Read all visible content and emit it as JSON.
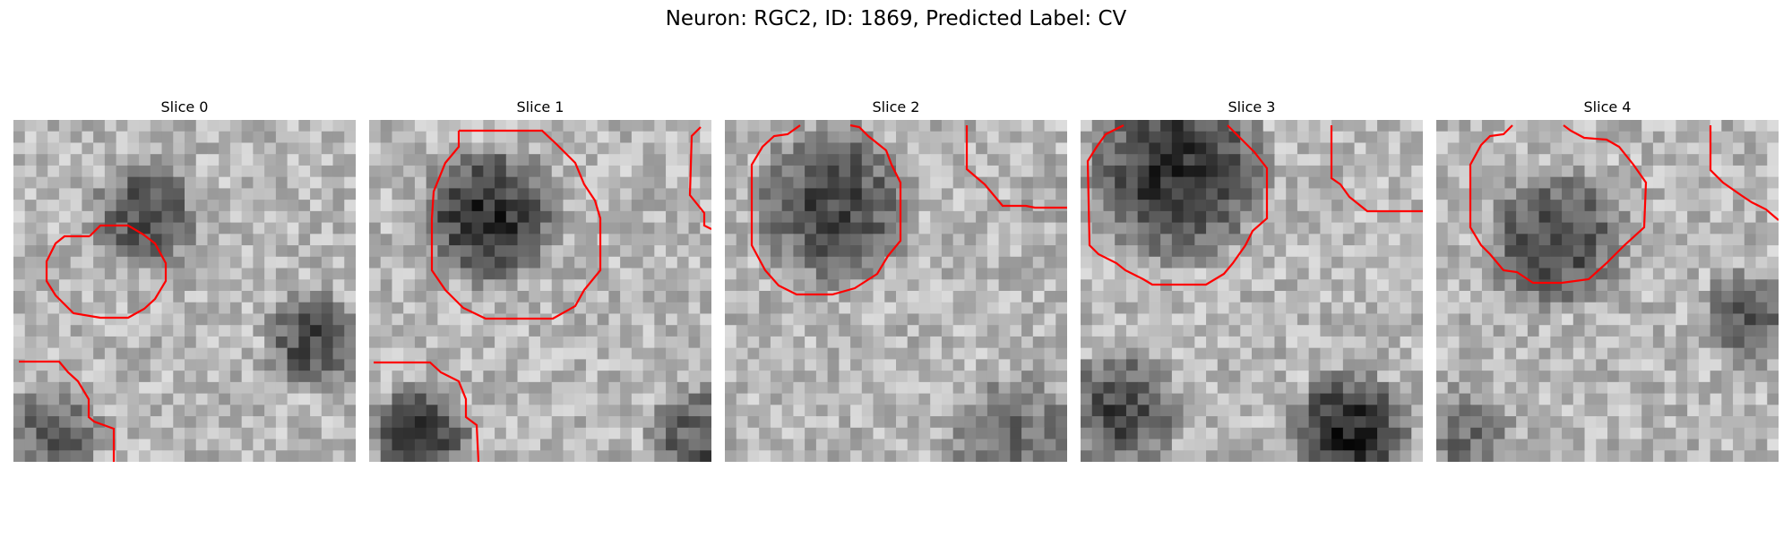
{
  "figure": {
    "title": "Neuron: RGC2, ID: 1869, Predicted Label: CV",
    "contour_color": "#ff0000"
  },
  "panels": [
    {
      "title": "Slice 0"
    },
    {
      "title": "Slice 1"
    },
    {
      "title": "Slice 2"
    },
    {
      "title": "Slice 3"
    },
    {
      "title": "Slice 4"
    }
  ]
}
